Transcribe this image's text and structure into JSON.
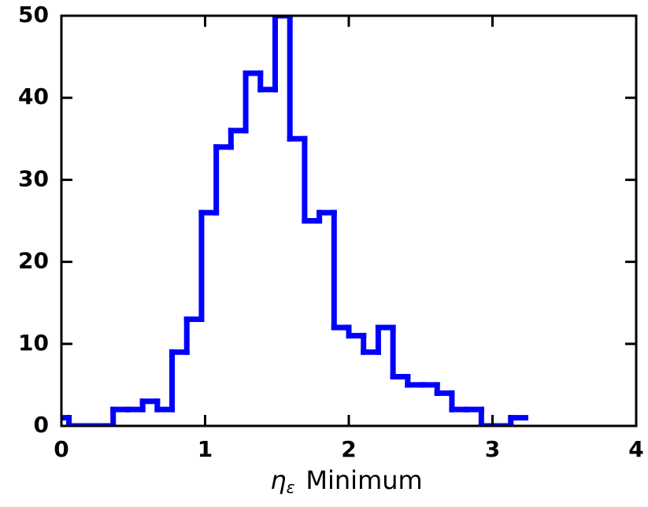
{
  "chart_data": {
    "type": "histogram",
    "xlabel": {
      "symbol": "η",
      "subscript": "ε",
      "text": "Minimum"
    },
    "bins": [
      -0.05,
      0.0525,
      0.155,
      0.2575,
      0.36,
      0.4625,
      0.565,
      0.6675,
      0.77,
      0.8725,
      0.975,
      1.0775,
      1.18,
      1.2825,
      1.385,
      1.4875,
      1.59,
      1.6925,
      1.795,
      1.8975,
      2.0,
      2.1025,
      2.205,
      2.3075,
      2.41,
      2.5125,
      2.615,
      2.7175,
      2.82,
      2.9225,
      3.025,
      3.1275,
      3.23
    ],
    "values": [
      1,
      0,
      0,
      0,
      2,
      2,
      3,
      2,
      9,
      13,
      26,
      34,
      36,
      43,
      41,
      50,
      35,
      25,
      26,
      12,
      11,
      9,
      12,
      6,
      5,
      5,
      4,
      2,
      2,
      0,
      0,
      1
    ],
    "color": "#0000ff",
    "xlim": [
      0,
      4
    ],
    "xticks": [
      0,
      1,
      2,
      3,
      4
    ],
    "ylim": [
      0,
      50
    ],
    "yticks": [
      0,
      10,
      20,
      30,
      40,
      50
    ]
  }
}
